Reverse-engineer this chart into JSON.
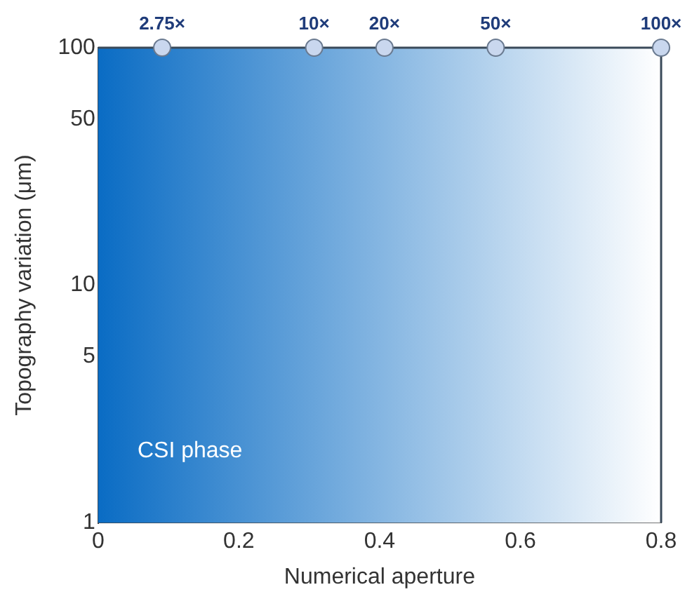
{
  "chart_data": {
    "type": "scatter",
    "xlabel": "Numerical aperture",
    "ylabel": "Topography variation (μm)",
    "series": [
      {
        "color": "#c9d7ee",
        "marker": "circle",
        "x": [
          0.091,
          0.307,
          0.407,
          0.565,
          0.8
        ],
        "values": [
          100,
          100,
          100,
          100,
          100
        ]
      }
    ],
    "bands": [
      {
        "axis": "x",
        "from": 0,
        "to": 0.8,
        "label": "CSI phase",
        "color": "#0a6cc4"
      }
    ],
    "xlim": [
      0,
      0.8
    ],
    "xticks": [
      0,
      0.2,
      0.4,
      0.6,
      0.8
    ],
    "ylim": [
      1,
      100
    ],
    "yticks": [
      1,
      5,
      10,
      50,
      100
    ],
    "log": "y",
    "legend": false,
    "annotations": [
      {
        "text": "2.75×",
        "x": 0.091,
        "y": 100
      },
      {
        "text": "10×",
        "x": 0.307,
        "y": 100
      },
      {
        "text": "20×",
        "x": 0.407,
        "y": 100
      },
      {
        "text": "50×",
        "x": 0.565,
        "y": 100
      },
      {
        "text": "100×",
        "x": 0.8,
        "y": 100
      }
    ]
  }
}
